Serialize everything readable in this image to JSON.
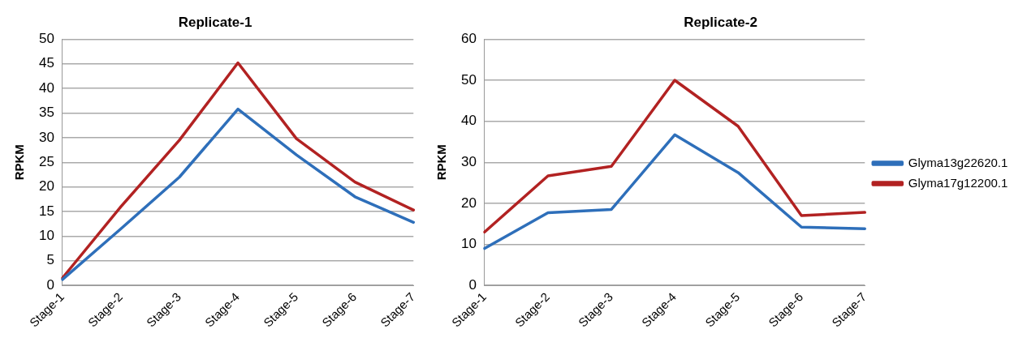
{
  "chart_data": [
    {
      "type": "line",
      "title": "Replicate-1",
      "ylabel": "RPKM",
      "categories": [
        "Stage-1",
        "Stage-2",
        "Stage-3",
        "Stage-4",
        "Stage-5",
        "Stage-6",
        "Stage-7"
      ],
      "ylim": [
        0,
        50
      ],
      "yticks": [
        0,
        5,
        10,
        15,
        20,
        25,
        30,
        35,
        40,
        45,
        50
      ],
      "grid": "y",
      "legend": false,
      "marker": "none",
      "series": [
        {
          "color": "#2e6fba",
          "values": [
            1.2,
            11.5,
            22,
            35.8,
            26.5,
            18,
            12.8
          ]
        },
        {
          "color": "#b22222",
          "values": [
            1.5,
            16,
            29.5,
            45.2,
            29.8,
            21,
            15.3
          ]
        }
      ]
    },
    {
      "type": "line",
      "title": "Replicate-2",
      "ylabel": "RPKM",
      "categories": [
        "Stage-1",
        "Stage-2",
        "Stage-3",
        "Stage-4",
        "Stage-5",
        "Stage-6",
        "Stage-7"
      ],
      "ylim": [
        0,
        60
      ],
      "yticks": [
        0,
        10,
        20,
        30,
        40,
        50,
        60
      ],
      "grid": "y",
      "legend": "right",
      "marker": "none",
      "series": [
        {
          "name": "Glyma13g22620.1",
          "color": "#2e6fba",
          "values": [
            9,
            17.7,
            18.5,
            36.7,
            27.5,
            14.2,
            13.8
          ]
        },
        {
          "name": "Glyma17g12200.1",
          "color": "#b22222",
          "values": [
            13,
            26.7,
            29,
            50,
            38.8,
            17,
            17.8
          ]
        }
      ]
    }
  ]
}
